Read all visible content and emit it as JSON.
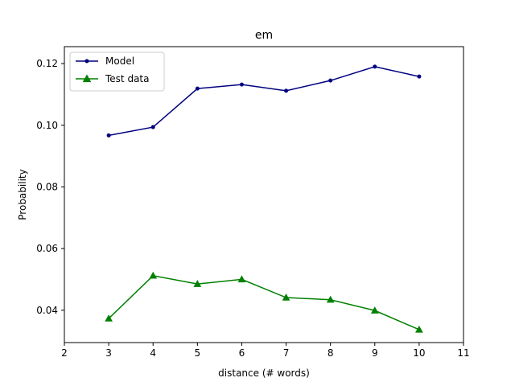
{
  "chart_data": {
    "type": "line",
    "title": "em",
    "xlabel": "distance (# words)",
    "ylabel": "Probability",
    "xlim": [
      2,
      11
    ],
    "ylim": [
      0.0295,
      0.1255
    ],
    "xticks": [
      2,
      3,
      4,
      5,
      6,
      7,
      8,
      9,
      10,
      11
    ],
    "yticks": [
      0.04,
      0.06,
      0.08,
      0.1,
      0.12
    ],
    "ytick_labels": [
      "0.04",
      "0.06",
      "0.08",
      "0.10",
      "0.12"
    ],
    "grid": false,
    "legend_position": "top-left",
    "x": [
      3,
      4,
      5,
      6,
      7,
      8,
      9,
      10
    ],
    "series": [
      {
        "name": "Model",
        "color": "#000080",
        "marker": "circle",
        "values": [
          0.0967,
          0.0994,
          0.1119,
          0.1132,
          0.1112,
          0.1145,
          0.119,
          0.1158
        ]
      },
      {
        "name": "Test data",
        "color": "#008000",
        "marker": "triangle",
        "values": [
          0.0373,
          0.0512,
          0.0485,
          0.05,
          0.0441,
          0.0434,
          0.0399,
          0.0337
        ]
      }
    ]
  }
}
